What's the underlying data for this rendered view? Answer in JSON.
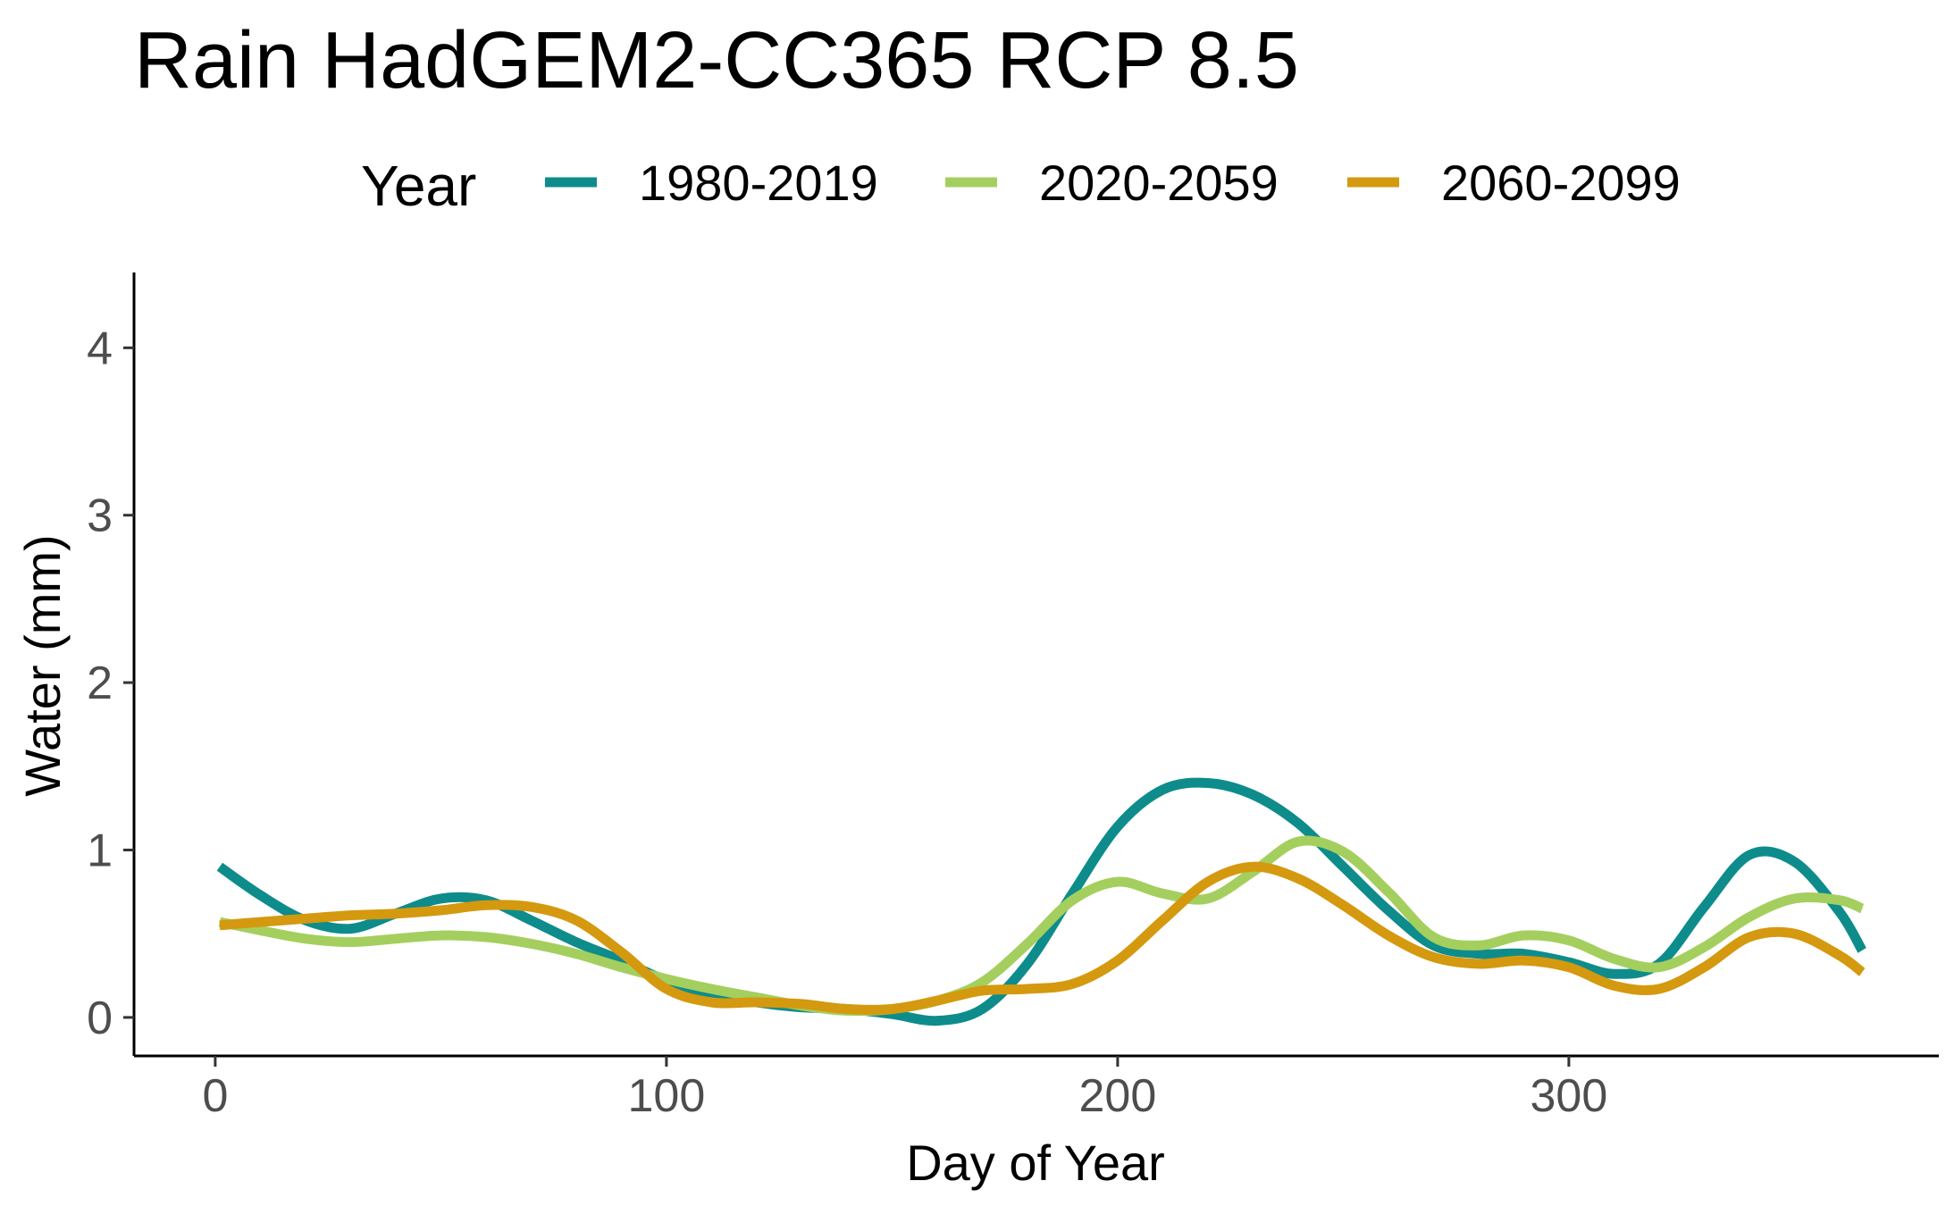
{
  "chart_data": {
    "type": "line",
    "title": "Rain HadGEM2-CC365 RCP 8.5",
    "xlabel": "Day of Year",
    "ylabel": "Water (mm)",
    "xlim": [
      -18,
      382
    ],
    "ylim": [
      -0.23,
      4.45
    ],
    "x_ticks": [
      0,
      100,
      200,
      300
    ],
    "y_ticks": [
      0,
      1,
      2,
      3,
      4
    ],
    "grid": false,
    "legend": {
      "title": "Year",
      "position": "top"
    },
    "series": [
      {
        "name": "1980-2019",
        "color": "#0e8c8c",
        "points": [
          [
            1,
            0.9
          ],
          [
            10,
            0.73
          ],
          [
            20,
            0.58
          ],
          [
            30,
            0.53
          ],
          [
            40,
            0.62
          ],
          [
            50,
            0.71
          ],
          [
            60,
            0.7
          ],
          [
            70,
            0.58
          ],
          [
            80,
            0.45
          ],
          [
            90,
            0.34
          ],
          [
            100,
            0.22
          ],
          [
            110,
            0.14
          ],
          [
            120,
            0.09
          ],
          [
            130,
            0.06
          ],
          [
            140,
            0.05
          ],
          [
            150,
            0.02
          ],
          [
            160,
            -0.02
          ],
          [
            170,
            0.05
          ],
          [
            180,
            0.32
          ],
          [
            190,
            0.74
          ],
          [
            200,
            1.14
          ],
          [
            210,
            1.36
          ],
          [
            220,
            1.4
          ],
          [
            230,
            1.33
          ],
          [
            240,
            1.16
          ],
          [
            250,
            0.9
          ],
          [
            260,
            0.64
          ],
          [
            270,
            0.43
          ],
          [
            280,
            0.38
          ],
          [
            290,
            0.38
          ],
          [
            300,
            0.33
          ],
          [
            310,
            0.26
          ],
          [
            320,
            0.32
          ],
          [
            330,
            0.66
          ],
          [
            340,
            0.97
          ],
          [
            350,
            0.93
          ],
          [
            360,
            0.63
          ],
          [
            365,
            0.4
          ]
        ]
      },
      {
        "name": "2020-2059",
        "color": "#a4cf5e",
        "points": [
          [
            1,
            0.57
          ],
          [
            10,
            0.52
          ],
          [
            20,
            0.47
          ],
          [
            30,
            0.45
          ],
          [
            40,
            0.47
          ],
          [
            50,
            0.49
          ],
          [
            60,
            0.48
          ],
          [
            70,
            0.44
          ],
          [
            80,
            0.38
          ],
          [
            90,
            0.3
          ],
          [
            100,
            0.23
          ],
          [
            110,
            0.17
          ],
          [
            120,
            0.12
          ],
          [
            130,
            0.07
          ],
          [
            140,
            0.04
          ],
          [
            150,
            0.05
          ],
          [
            160,
            0.1
          ],
          [
            170,
            0.21
          ],
          [
            180,
            0.44
          ],
          [
            190,
            0.7
          ],
          [
            200,
            0.81
          ],
          [
            210,
            0.74
          ],
          [
            220,
            0.71
          ],
          [
            230,
            0.87
          ],
          [
            240,
            1.05
          ],
          [
            250,
            0.99
          ],
          [
            260,
            0.75
          ],
          [
            270,
            0.48
          ],
          [
            280,
            0.43
          ],
          [
            290,
            0.49
          ],
          [
            300,
            0.46
          ],
          [
            310,
            0.35
          ],
          [
            320,
            0.3
          ],
          [
            330,
            0.42
          ],
          [
            340,
            0.6
          ],
          [
            350,
            0.71
          ],
          [
            360,
            0.7
          ],
          [
            365,
            0.65
          ]
        ]
      },
      {
        "name": "2060-2099",
        "color": "#d4990e",
        "points": [
          [
            1,
            0.55
          ],
          [
            10,
            0.57
          ],
          [
            20,
            0.59
          ],
          [
            30,
            0.61
          ],
          [
            40,
            0.62
          ],
          [
            50,
            0.64
          ],
          [
            60,
            0.67
          ],
          [
            70,
            0.66
          ],
          [
            80,
            0.58
          ],
          [
            90,
            0.39
          ],
          [
            100,
            0.17
          ],
          [
            110,
            0.09
          ],
          [
            120,
            0.09
          ],
          [
            130,
            0.08
          ],
          [
            140,
            0.05
          ],
          [
            150,
            0.05
          ],
          [
            160,
            0.1
          ],
          [
            170,
            0.16
          ],
          [
            180,
            0.17
          ],
          [
            190,
            0.2
          ],
          [
            200,
            0.34
          ],
          [
            210,
            0.58
          ],
          [
            220,
            0.81
          ],
          [
            230,
            0.9
          ],
          [
            240,
            0.83
          ],
          [
            250,
            0.67
          ],
          [
            260,
            0.49
          ],
          [
            270,
            0.36
          ],
          [
            280,
            0.32
          ],
          [
            290,
            0.34
          ],
          [
            300,
            0.3
          ],
          [
            310,
            0.19
          ],
          [
            320,
            0.17
          ],
          [
            330,
            0.3
          ],
          [
            340,
            0.48
          ],
          [
            350,
            0.5
          ],
          [
            360,
            0.37
          ],
          [
            365,
            0.27
          ]
        ]
      }
    ]
  }
}
